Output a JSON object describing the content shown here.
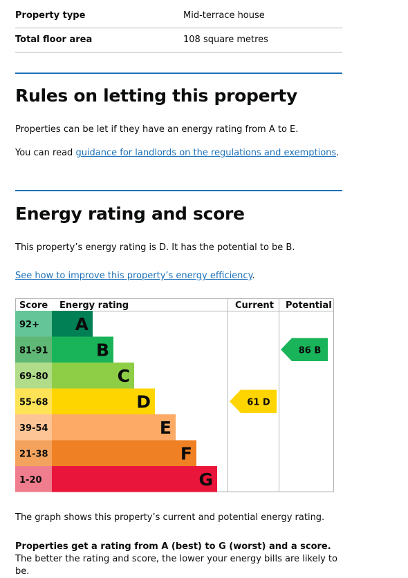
{
  "summary": {
    "rows": [
      {
        "key": "Property type",
        "value": "Mid-terrace house"
      },
      {
        "key": "Total floor area",
        "value": "108 square metres"
      }
    ]
  },
  "letting": {
    "heading": "Rules on letting this property",
    "para1": "Properties can be let if they have an energy rating from A to E.",
    "para2_prefix": "You can read ",
    "para2_link": "guidance for landlords on the regulations and exemptions",
    "para2_suffix": "."
  },
  "energy": {
    "heading": "Energy rating and score",
    "para1": "This property’s energy rating is D. It has the potential to be B.",
    "improve_link": "See how to improve this property’s energy efficiency",
    "improve_suffix": ".",
    "graph_note": "The graph shows this property’s current and potential energy rating.",
    "rating_note_bold": "Properties get a rating from A (best) to G (worst) and a score.",
    "rating_note_rest": " The better the rating and score, the lower your energy bills are likely to be."
  },
  "chart_data": {
    "type": "table",
    "headers": {
      "score": "Score",
      "rating": "Energy rating",
      "current": "Current",
      "potential": "Potential"
    },
    "bands": [
      {
        "letter": "A",
        "range": "92+",
        "color": "#008054",
        "score_bg": "#64c598"
      },
      {
        "letter": "B",
        "range": "81-91",
        "color": "#19b459",
        "score_bg": "#5fb875"
      },
      {
        "letter": "C",
        "range": "69-80",
        "color": "#8dce46",
        "score_bg": "#b1dc89"
      },
      {
        "letter": "D",
        "range": "55-68",
        "color": "#ffd500",
        "score_bg": "#ffe356"
      },
      {
        "letter": "E",
        "range": "39-54",
        "color": "#fcaa65",
        "score_bg": "#fdc495"
      },
      {
        "letter": "F",
        "range": "21-38",
        "color": "#ef8023",
        "score_bg": "#f4a35f"
      },
      {
        "letter": "G",
        "range": "1-20",
        "color": "#e9153b",
        "score_bg": "#f07d8e"
      }
    ],
    "current": {
      "score": 61,
      "band": "D",
      "label": "61 D",
      "color": "#ffd500"
    },
    "potential": {
      "score": 86,
      "band": "B",
      "label": "86 B",
      "color": "#19b459"
    }
  }
}
